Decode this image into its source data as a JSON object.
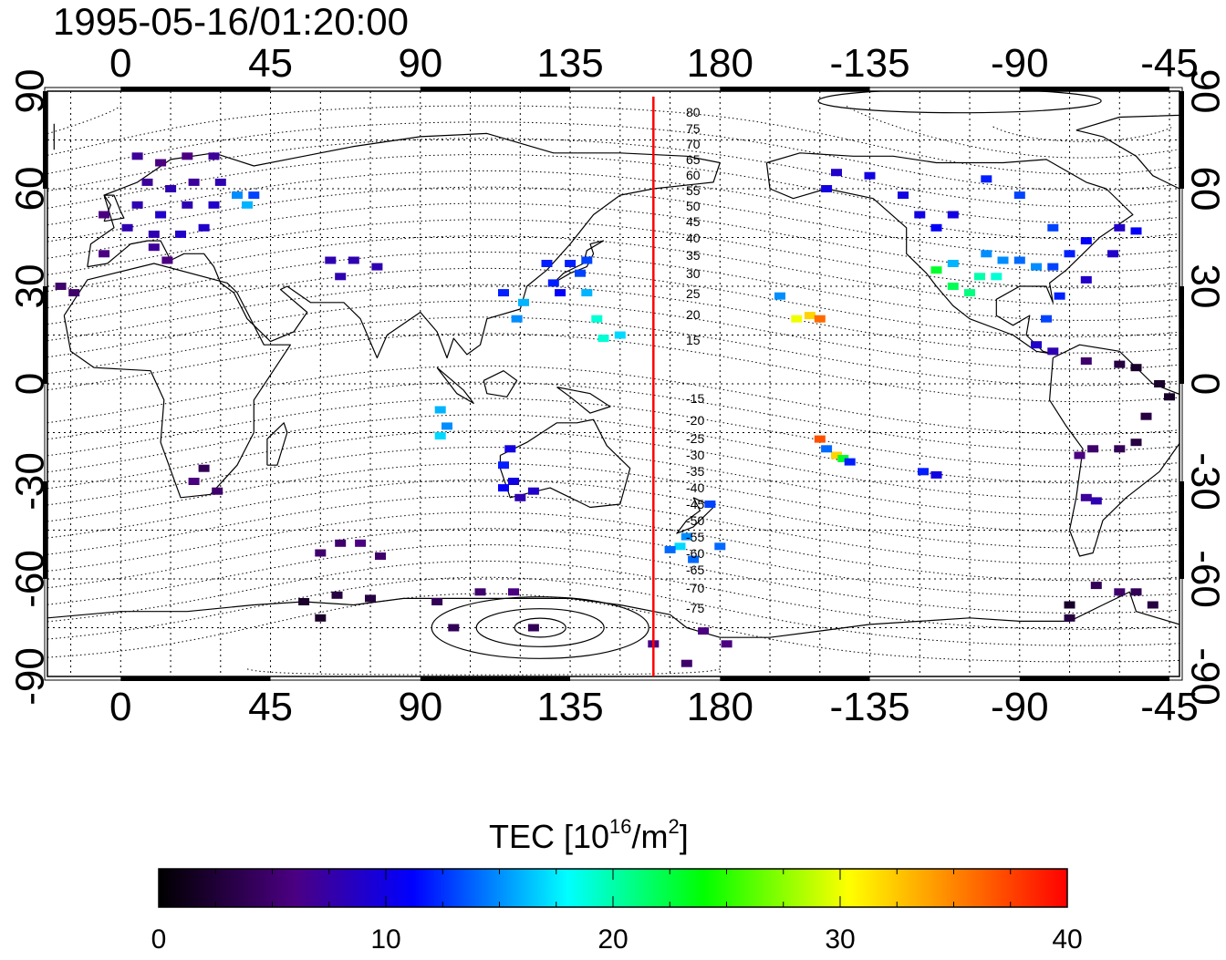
{
  "title": "1995-05-16/01:20:00",
  "map": {
    "projection": "equirectangular",
    "lon_range": [
      -22,
      318
    ],
    "lat_range": [
      -90,
      90
    ],
    "top_ticks": [
      "0",
      "45",
      "90",
      "135",
      "180",
      "-135",
      "-90",
      "-45"
    ],
    "bottom_ticks": [
      "0",
      "45",
      "90",
      "135",
      "180",
      "-135",
      "-90",
      "-45"
    ],
    "left_ticks": [
      "90",
      "60",
      "30",
      "0",
      "-30",
      "-60",
      "-90"
    ],
    "right_ticks": [
      "90",
      "60",
      "30",
      "0",
      "-30",
      "-60",
      "-90"
    ],
    "tick_lons": [
      0,
      45,
      90,
      135,
      180,
      225,
      270,
      315
    ],
    "tick_lats": [
      90,
      60,
      30,
      0,
      -30,
      -60,
      -90
    ],
    "grid": "dotted, every 15 degrees",
    "midnight_meridian_lon": 160,
    "midnight_meridian_color": "#ff0000",
    "magnetic_latitude_labels": {
      "north": [
        "80",
        "75",
        "70",
        "65",
        "60",
        "55",
        "50",
        "45",
        "40",
        "35",
        "30",
        "25",
        "20",
        "15"
      ],
      "south": [
        "-15",
        "-20",
        "-25",
        "-30",
        "-35",
        "-40",
        "-45",
        "-50",
        "-55",
        "-60",
        "-65",
        "-70",
        "-75"
      ]
    }
  },
  "colorbar": {
    "title_main": "TEC  [10",
    "title_sup": "16",
    "title_mid": "/m",
    "title_sup2": "2",
    "title_end": "]",
    "min": 0,
    "max": 40,
    "tick_labels": [
      "0",
      "10",
      "20",
      "30",
      "40"
    ],
    "colormap": "black-purple-blue-cyan-green-yellow-red",
    "stops": [
      "#000000",
      "#4b0082",
      "#0000ff",
      "#00ffff",
      "#00ff00",
      "#ffff00",
      "#ff0000"
    ]
  },
  "tec_points": [
    {
      "lon": 5,
      "lat": 70,
      "tec": 7
    },
    {
      "lon": 12,
      "lat": 68,
      "tec": 6
    },
    {
      "lon": 20,
      "lat": 70,
      "tec": 6
    },
    {
      "lon": 28,
      "lat": 70,
      "tec": 7
    },
    {
      "lon": 8,
      "lat": 62,
      "tec": 7
    },
    {
      "lon": 15,
      "lat": 60,
      "tec": 8
    },
    {
      "lon": 22,
      "lat": 62,
      "tec": 7
    },
    {
      "lon": 30,
      "lat": 62,
      "tec": 8
    },
    {
      "lon": 5,
      "lat": 55,
      "tec": 8
    },
    {
      "lon": 12,
      "lat": 52,
      "tec": 9
    },
    {
      "lon": 20,
      "lat": 55,
      "tec": 8
    },
    {
      "lon": 28,
      "lat": 55,
      "tec": 9
    },
    {
      "lon": -5,
      "lat": 52,
      "tec": 6
    },
    {
      "lon": 2,
      "lat": 48,
      "tec": 8
    },
    {
      "lon": 10,
      "lat": 46,
      "tec": 8
    },
    {
      "lon": 18,
      "lat": 46,
      "tec": 9
    },
    {
      "lon": 25,
      "lat": 48,
      "tec": 9
    },
    {
      "lon": 35,
      "lat": 58,
      "tec": 15
    },
    {
      "lon": 40,
      "lat": 58,
      "tec": 13
    },
    {
      "lon": 38,
      "lat": 55,
      "tec": 16
    },
    {
      "lon": -5,
      "lat": 40,
      "tec": 6
    },
    {
      "lon": 14,
      "lat": 38,
      "tec": 6
    },
    {
      "lon": 10,
      "lat": 42,
      "tec": 7
    },
    {
      "lon": -18,
      "lat": 30,
      "tec": 5
    },
    {
      "lon": -14,
      "lat": 28,
      "tec": 5
    },
    {
      "lon": 63,
      "lat": 38,
      "tec": 8
    },
    {
      "lon": 70,
      "lat": 38,
      "tec": 8
    },
    {
      "lon": 77,
      "lat": 36,
      "tec": 8
    },
    {
      "lon": 66,
      "lat": 33,
      "tec": 8
    },
    {
      "lon": 128,
      "lat": 37,
      "tec": 12
    },
    {
      "lon": 135,
      "lat": 37,
      "tec": 12
    },
    {
      "lon": 140,
      "lat": 38,
      "tec": 13
    },
    {
      "lon": 138,
      "lat": 34,
      "tec": 13
    },
    {
      "lon": 140,
      "lat": 28,
      "tec": 16
    },
    {
      "lon": 130,
      "lat": 31,
      "tec": 12
    },
    {
      "lon": 121,
      "lat": 25,
      "tec": 16
    },
    {
      "lon": 115,
      "lat": 28,
      "tec": 12
    },
    {
      "lon": 119,
      "lat": 20,
      "tec": 15
    },
    {
      "lon": 143,
      "lat": 20,
      "tec": 19
    },
    {
      "lon": 145,
      "lat": 14,
      "tec": 19
    },
    {
      "lon": 150,
      "lat": 15,
      "tec": 17
    },
    {
      "lon": 132,
      "lat": 28,
      "tec": 11
    },
    {
      "lon": 96,
      "lat": -8,
      "tec": 16
    },
    {
      "lon": 98,
      "lat": -13,
      "tec": 15
    },
    {
      "lon": 96,
      "lat": -16,
      "tec": 17
    },
    {
      "lon": 117,
      "lat": -20,
      "tec": 10
    },
    {
      "lon": 115,
      "lat": -25,
      "tec": 12
    },
    {
      "lon": 118,
      "lat": -30,
      "tec": 10
    },
    {
      "lon": 115,
      "lat": -32,
      "tec": 11
    },
    {
      "lon": 120,
      "lat": -35,
      "tec": 8
    },
    {
      "lon": 124,
      "lat": -33,
      "tec": 9
    },
    {
      "lon": 22,
      "lat": -30,
      "tec": 6
    },
    {
      "lon": 25,
      "lat": -26,
      "tec": 4
    },
    {
      "lon": 29,
      "lat": -33,
      "tec": 5
    },
    {
      "lon": 60,
      "lat": -52,
      "tec": 5
    },
    {
      "lon": 66,
      "lat": -49,
      "tec": 5
    },
    {
      "lon": 72,
      "lat": -49,
      "tec": 6
    },
    {
      "lon": 78,
      "lat": -53,
      "tec": 5
    },
    {
      "lon": 55,
      "lat": -67,
      "tec": 2
    },
    {
      "lon": 60,
      "lat": -72,
      "tec": 2
    },
    {
      "lon": 65,
      "lat": -65,
      "tec": 3
    },
    {
      "lon": 75,
      "lat": -66,
      "tec": 3
    },
    {
      "lon": 95,
      "lat": -67,
      "tec": 4
    },
    {
      "lon": 100,
      "lat": -75,
      "tec": 4
    },
    {
      "lon": 108,
      "lat": -64,
      "tec": 5
    },
    {
      "lon": 118,
      "lat": -64,
      "tec": 6
    },
    {
      "lon": 124,
      "lat": -75,
      "tec": 4
    },
    {
      "lon": 160,
      "lat": -80,
      "tec": 6
    },
    {
      "lon": 175,
      "lat": -76,
      "tec": 6
    },
    {
      "lon": 170,
      "lat": -86,
      "tec": 5
    },
    {
      "lon": 182,
      "lat": -80,
      "tec": 6
    },
    {
      "lon": 172,
      "lat": -54,
      "tec": 14
    },
    {
      "lon": 170,
      "lat": -47,
      "tec": 15
    },
    {
      "lon": 168,
      "lat": -50,
      "tec": 17
    },
    {
      "lon": 180,
      "lat": -50,
      "tec": 14
    },
    {
      "lon": 177,
      "lat": -37,
      "tec": 13
    },
    {
      "lon": 165,
      "lat": -51,
      "tec": 14
    },
    {
      "lon": 207,
      "lat": 21,
      "tec": 32
    },
    {
      "lon": 203,
      "lat": 20,
      "tec": 30
    },
    {
      "lon": 210,
      "lat": 20,
      "tec": 36
    },
    {
      "lon": 198,
      "lat": 27,
      "tec": 15
    },
    {
      "lon": 210,
      "lat": -17,
      "tec": 37
    },
    {
      "lon": 215,
      "lat": -22,
      "tec": 32
    },
    {
      "lon": 217,
      "lat": -23,
      "tec": 23
    },
    {
      "lon": 212,
      "lat": -20,
      "tec": 14
    },
    {
      "lon": 219,
      "lat": -24,
      "tec": 12
    },
    {
      "lon": 241,
      "lat": -27,
      "tec": 12
    },
    {
      "lon": 245,
      "lat": -28,
      "tec": 10
    },
    {
      "lon": 245,
      "lat": 35,
      "tec": 23
    },
    {
      "lon": 250,
      "lat": 30,
      "tec": 22
    },
    {
      "lon": 255,
      "lat": 28,
      "tec": 21
    },
    {
      "lon": 258,
      "lat": 33,
      "tec": 20
    },
    {
      "lon": 263,
      "lat": 33,
      "tec": 19
    },
    {
      "lon": 250,
      "lat": 37,
      "tec": 16
    },
    {
      "lon": 260,
      "lat": 40,
      "tec": 15
    },
    {
      "lon": 265,
      "lat": 38,
      "tec": 15
    },
    {
      "lon": 270,
      "lat": 38,
      "tec": 14
    },
    {
      "lon": 275,
      "lat": 36,
      "tec": 15
    },
    {
      "lon": 280,
      "lat": 36,
      "tec": 13
    },
    {
      "lon": 285,
      "lat": 40,
      "tec": 12
    },
    {
      "lon": 290,
      "lat": 44,
      "tec": 11
    },
    {
      "lon": 245,
      "lat": 48,
      "tec": 11
    },
    {
      "lon": 250,
      "lat": 52,
      "tec": 10
    },
    {
      "lon": 240,
      "lat": 52,
      "tec": 10
    },
    {
      "lon": 235,
      "lat": 58,
      "tec": 10
    },
    {
      "lon": 215,
      "lat": 65,
      "tec": 9
    },
    {
      "lon": 212,
      "lat": 60,
      "tec": 10
    },
    {
      "lon": 225,
      "lat": 64,
      "tec": 10
    },
    {
      "lon": 260,
      "lat": 63,
      "tec": 12
    },
    {
      "lon": 270,
      "lat": 58,
      "tec": 13
    },
    {
      "lon": 280,
      "lat": 48,
      "tec": 13
    },
    {
      "lon": 300,
      "lat": 48,
      "tec": 9
    },
    {
      "lon": 305,
      "lat": 47,
      "tec": 11
    },
    {
      "lon": 298,
      "lat": 40,
      "tec": 9
    },
    {
      "lon": 290,
      "lat": 32,
      "tec": 9
    },
    {
      "lon": 282,
      "lat": 27,
      "tec": 12
    },
    {
      "lon": 278,
      "lat": 20,
      "tec": 13
    },
    {
      "lon": 275,
      "lat": 12,
      "tec": 9
    },
    {
      "lon": 280,
      "lat": 10,
      "tec": 8
    },
    {
      "lon": 290,
      "lat": 7,
      "tec": 5
    },
    {
      "lon": 300,
      "lat": 6,
      "tec": 3
    },
    {
      "lon": 305,
      "lat": 5,
      "tec": 2
    },
    {
      "lon": 312,
      "lat": 0,
      "tec": 2
    },
    {
      "lon": 315,
      "lat": -4,
      "tec": 2
    },
    {
      "lon": 308,
      "lat": -10,
      "tec": 3
    },
    {
      "lon": 305,
      "lat": -18,
      "tec": 3
    },
    {
      "lon": 300,
      "lat": -20,
      "tec": 4
    },
    {
      "lon": 292,
      "lat": -20,
      "tec": 5
    },
    {
      "lon": 288,
      "lat": -22,
      "tec": 6
    },
    {
      "lon": 290,
      "lat": -35,
      "tec": 7
    },
    {
      "lon": 293,
      "lat": -36,
      "tec": 8
    },
    {
      "lon": 293,
      "lat": -62,
      "tec": 4
    },
    {
      "lon": 300,
      "lat": -64,
      "tec": 5
    },
    {
      "lon": 305,
      "lat": -64,
      "tec": 4
    },
    {
      "lon": 310,
      "lat": -68,
      "tec": 3
    },
    {
      "lon": 285,
      "lat": -68,
      "tec": 2
    },
    {
      "lon": 285,
      "lat": -72,
      "tec": 3
    }
  ]
}
